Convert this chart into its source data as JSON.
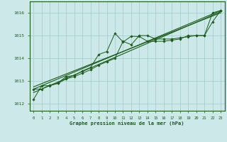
{
  "title": "Graphe pression niveau de la mer (hPa)",
  "background_color": "#cce8e8",
  "grid_color": "#aad0d0",
  "line_color": "#1a5c1a",
  "x_ticks": [
    0,
    1,
    2,
    3,
    4,
    5,
    6,
    7,
    8,
    9,
    10,
    11,
    12,
    13,
    14,
    15,
    16,
    17,
    18,
    19,
    20,
    21,
    22,
    23
  ],
  "ylim": [
    1011.7,
    1016.5
  ],
  "yticks": [
    1012,
    1013,
    1014,
    1015,
    1016
  ],
  "series1": [
    1012.2,
    1012.8,
    1012.8,
    1012.9,
    1013.1,
    1013.2,
    1013.35,
    1013.5,
    1013.7,
    1013.85,
    1014.0,
    1014.75,
    1014.6,
    1015.0,
    1015.0,
    1014.85,
    1014.85,
    1014.85,
    1014.9,
    1014.95,
    1015.0,
    1015.0,
    1016.0,
    1016.1
  ],
  "series2": [
    1012.65,
    1012.65,
    1012.82,
    1012.92,
    1013.2,
    1013.25,
    1013.45,
    1013.6,
    1014.17,
    1014.3,
    1015.1,
    1014.72,
    1014.97,
    1014.96,
    1014.75,
    1014.75,
    1014.75,
    1014.8,
    1014.85,
    1015.0,
    1015.0,
    1015.0,
    1015.6,
    1016.1
  ],
  "trend1_x": [
    0,
    23
  ],
  "trend1_y": [
    1012.65,
    1016.1
  ],
  "trend2_x": [
    0,
    23
  ],
  "trend2_y": [
    1012.75,
    1016.0
  ],
  "trend3_x": [
    0,
    23
  ],
  "trend3_y": [
    1012.5,
    1016.05
  ]
}
